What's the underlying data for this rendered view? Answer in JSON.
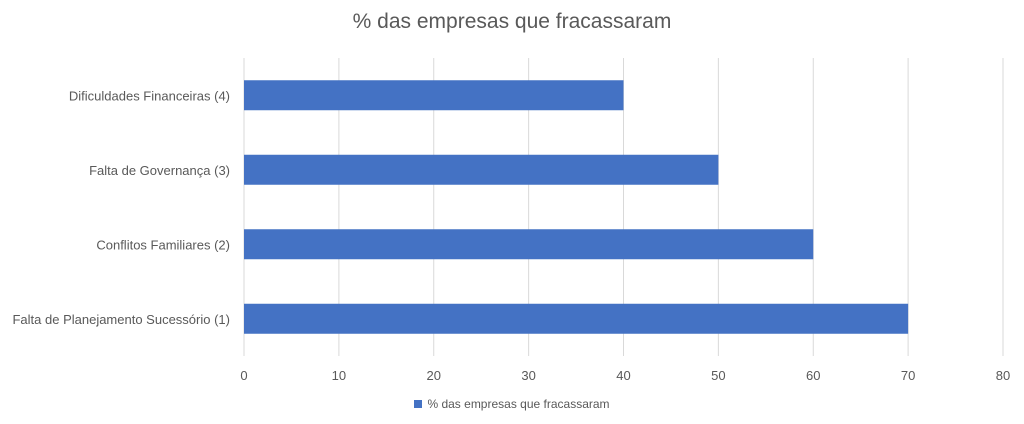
{
  "chart_data": {
    "type": "bar",
    "orientation": "horizontal",
    "title": "% das empresas que fracassaram",
    "categories": [
      "Dificuldades Financeiras (4)",
      "Falta de Governança (3)",
      "Conflitos Familiares (2)",
      "Falta de Planejamento Sucessório (1)"
    ],
    "series": [
      {
        "name": "% das empresas que fracassaram",
        "values": [
          40,
          50,
          60,
          70
        ],
        "color": "#4472C4"
      }
    ],
    "xlim": [
      0,
      80
    ],
    "xticks": [
      0,
      10,
      20,
      30,
      40,
      50,
      60,
      70,
      80
    ],
    "grid": true,
    "legend_position": "bottom"
  }
}
